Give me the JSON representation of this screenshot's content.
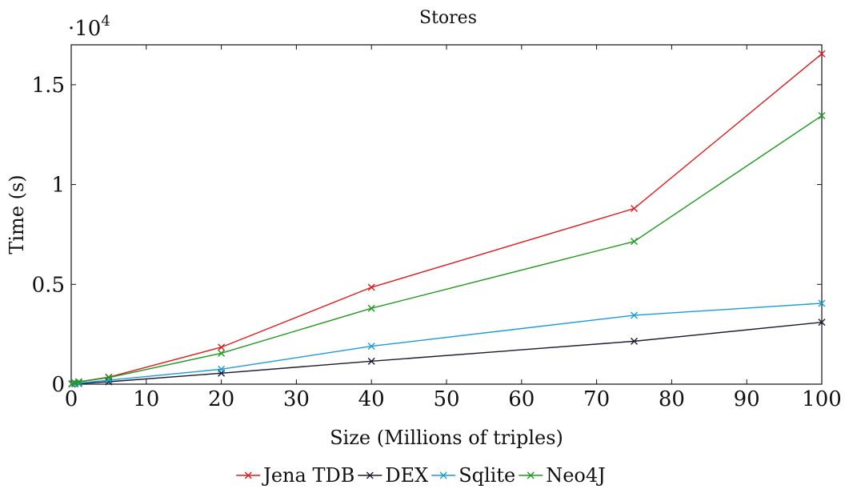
{
  "chart_data": {
    "type": "line",
    "title": "Stores",
    "xlabel": "Size (Millions of triples)",
    "ylabel": "Time (s)",
    "y_multiplier": {
      "base": "·10",
      "exponent": "4"
    },
    "xlim": [
      0,
      100
    ],
    "ylim": [
      0,
      17000
    ],
    "x_ticks": [
      0,
      10,
      20,
      30,
      40,
      50,
      60,
      70,
      80,
      90,
      100
    ],
    "x_tick_labels": [
      "0",
      "10",
      "20",
      "30",
      "40",
      "50",
      "60",
      "70",
      "80",
      "90",
      "100"
    ],
    "y_ticks": [
      0,
      5000,
      10000,
      15000
    ],
    "y_tick_labels": [
      "0",
      "0.5",
      "1",
      "1.5"
    ],
    "grid": false,
    "legend_position": "bottom",
    "x": [
      0.1,
      0.5,
      1,
      5,
      20,
      40,
      75,
      100
    ],
    "series": [
      {
        "name": "Jena TDB",
        "color": "#e31a1c",
        "marker": "x",
        "values": [
          20,
          60,
          120,
          350,
          1850,
          4850,
          8800,
          16550
        ]
      },
      {
        "name": "DEX",
        "color": "#1a1a33",
        "marker": "x",
        "values": [
          5,
          15,
          30,
          120,
          550,
          1150,
          2150,
          3100
        ]
      },
      {
        "name": "Sqlite",
        "color": "#1a9cdc",
        "marker": "x",
        "values": [
          10,
          25,
          50,
          200,
          750,
          1900,
          3450,
          4050
        ]
      },
      {
        "name": "Neo4J",
        "color": "#1f9a1f",
        "marker": "x",
        "values": [
          20,
          60,
          110,
          330,
          1550,
          3800,
          7150,
          13450
        ]
      }
    ]
  }
}
